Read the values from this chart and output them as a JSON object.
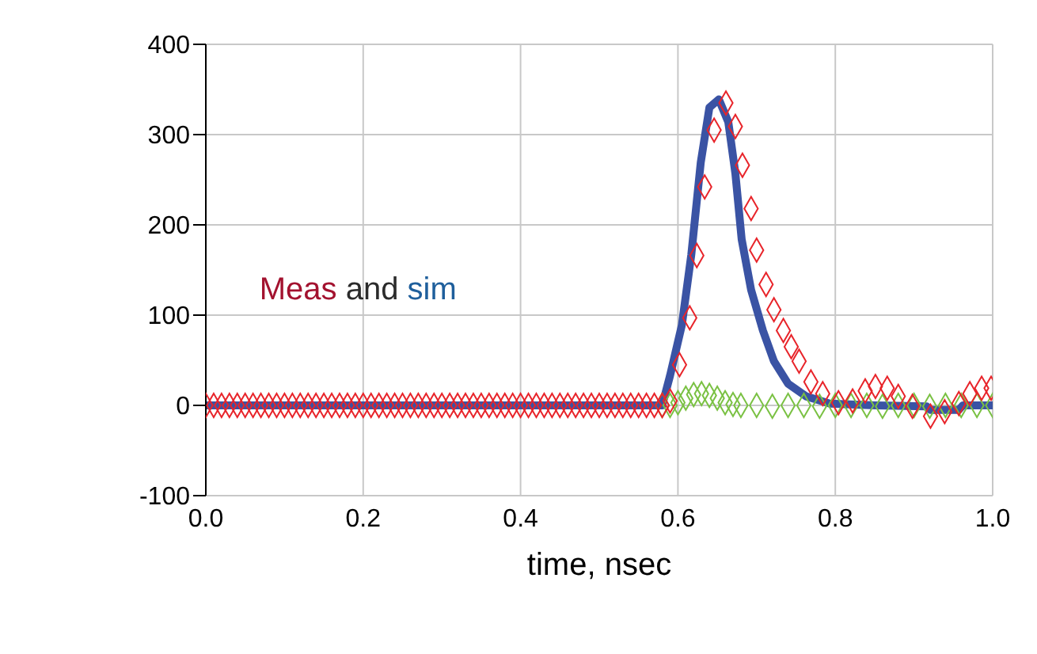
{
  "chart_data": {
    "type": "scatter",
    "xlabel": "time, nsec",
    "annotations": [
      "Meas and sim"
    ],
    "xlim": [
      0,
      1
    ],
    "xticks": [
      {
        "value": 0,
        "label": "0.0"
      },
      {
        "value": 0.2,
        "label": "0.2"
      },
      {
        "value": 0.4,
        "label": "0.4"
      },
      {
        "value": 0.6,
        "label": "0.6"
      },
      {
        "value": 0.8,
        "label": "0.8"
      },
      {
        "value": 1,
        "label": "1.0"
      }
    ],
    "ylim": [
      -100,
      400
    ],
    "yticks": [
      -100,
      0,
      100,
      200,
      300,
      400
    ],
    "grid": true,
    "legend": false,
    "marker": "diamond",
    "series": [
      {
        "color": "#7ac143",
        "x": [
          0.58,
          0.59,
          0.6,
          0.61,
          0.62,
          0.63,
          0.64,
          0.65,
          0.66,
          0.67,
          0.68,
          0.7,
          0.72,
          0.74,
          0.76,
          0.78,
          0.8,
          0.82,
          0.84,
          0.86,
          0.88,
          0.9,
          0.92,
          0.94,
          0.96,
          0.98,
          1.0
        ],
        "values": [
          0,
          0,
          3,
          8,
          12,
          13,
          11,
          8,
          3,
          1,
          0,
          0,
          -1,
          0,
          0,
          -1,
          0,
          0,
          0,
          -1,
          0,
          0,
          -1,
          0,
          0,
          0,
          0
        ]
      },
      {
        "color": "#e8242a",
        "x": [
          0,
          0.01,
          0.02,
          0.03,
          0.04,
          0.05,
          0.06,
          0.07,
          0.08,
          0.09,
          0.1,
          0.11,
          0.12,
          0.13,
          0.14,
          0.15,
          0.16,
          0.17,
          0.18,
          0.19,
          0.2,
          0.21,
          0.22,
          0.23,
          0.24,
          0.25,
          0.26,
          0.27,
          0.28,
          0.29,
          0.3,
          0.31,
          0.32,
          0.33,
          0.34,
          0.35,
          0.36,
          0.37,
          0.38,
          0.39,
          0.4,
          0.41,
          0.42,
          0.43,
          0.44,
          0.45,
          0.46,
          0.47,
          0.48,
          0.49,
          0.5,
          0.51,
          0.52,
          0.53,
          0.54,
          0.55,
          0.56,
          0.57,
          0.58,
          0.59,
          0.602,
          0.615,
          0.624,
          0.634,
          0.646,
          0.661,
          0.673,
          0.682,
          0.693,
          0.7,
          0.712,
          0.722,
          0.734,
          0.744,
          0.754,
          0.769,
          0.784,
          0.804,
          0.822,
          0.838,
          0.851,
          0.866,
          0.88,
          0.898,
          0.921,
          0.939,
          0.957,
          0.971,
          0.986,
          0.998
        ],
        "values": [
          0,
          0,
          0,
          0,
          0,
          0,
          0,
          0,
          0,
          0,
          0,
          0,
          0,
          0,
          0,
          0,
          0,
          0,
          0,
          0,
          0,
          0,
          0,
          0,
          0,
          0,
          0,
          0,
          0,
          0,
          0,
          0,
          0,
          0,
          0,
          0,
          0,
          0,
          0,
          0,
          0,
          0,
          0,
          0,
          0,
          0,
          0,
          0,
          0,
          0,
          0,
          0,
          0,
          0,
          0,
          0,
          0,
          0,
          0,
          5,
          45,
          97,
          166,
          242,
          305,
          335,
          309,
          266,
          218,
          172,
          134,
          106,
          83,
          65,
          49,
          26,
          13,
          3,
          5,
          16,
          21,
          19,
          10,
          -1,
          -12,
          -7,
          2,
          13,
          19,
          19
        ]
      },
      {
        "type": "line",
        "color": "#3a53a4",
        "marker": "none",
        "x": [
          0,
          0.58,
          0.59,
          0.605,
          0.617,
          0.629,
          0.64,
          0.652,
          0.664,
          0.673,
          0.681,
          0.693,
          0.708,
          0.722,
          0.74,
          0.763,
          0.793,
          0.851,
          0.916,
          0.921,
          0.957,
          0.962,
          1.0
        ],
        "values": [
          0,
          0,
          33,
          89,
          167,
          269,
          330,
          339,
          314,
          257,
          184,
          128,
          83,
          49,
          24,
          10,
          2,
          0,
          -1,
          -5,
          -5,
          0,
          0
        ]
      }
    ]
  }
}
